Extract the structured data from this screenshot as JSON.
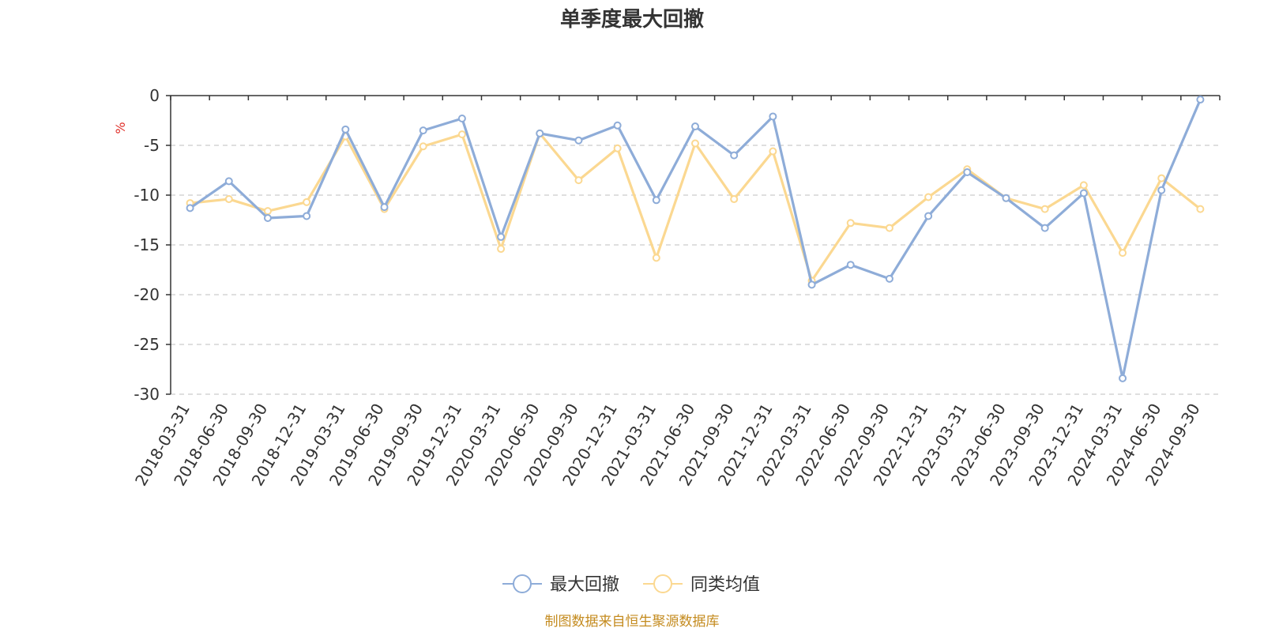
{
  "chart_data": {
    "type": "line",
    "title": "单季度最大回撤",
    "ylabel": "%",
    "ylim": [
      -30,
      0
    ],
    "yticks": [
      0,
      -5,
      -10,
      -15,
      -20,
      -25,
      -30
    ],
    "grid": true,
    "legend_position": "bottom-center",
    "categories": [
      "2018-03-31",
      "2018-06-30",
      "2018-09-30",
      "2018-12-31",
      "2019-03-31",
      "2019-06-30",
      "2019-09-30",
      "2019-12-31",
      "2020-03-31",
      "2020-06-30",
      "2020-09-30",
      "2020-12-31",
      "2021-03-31",
      "2021-06-30",
      "2021-09-30",
      "2021-12-31",
      "2022-03-31",
      "2022-06-30",
      "2022-09-30",
      "2022-12-31",
      "2023-03-31",
      "2023-06-30",
      "2023-09-30",
      "2023-12-31",
      "2024-03-31",
      "2024-06-30",
      "2024-09-30"
    ],
    "series": [
      {
        "name": "最大回撤",
        "color": "#8eacd8",
        "values": [
          -11.3,
          -8.6,
          -12.3,
          -12.1,
          -3.4,
          -11.2,
          -3.5,
          -2.3,
          -14.2,
          -3.8,
          -4.5,
          -3.0,
          -10.5,
          -3.1,
          -6.0,
          -2.1,
          -19.0,
          -17.0,
          -18.4,
          -12.1,
          -7.7,
          -10.3,
          -13.3,
          -9.8,
          -28.4,
          -9.5,
          -0.4
        ]
      },
      {
        "name": "同类均值",
        "color": "#fbd891",
        "values": [
          -10.8,
          -10.4,
          -11.6,
          -10.7,
          -4.1,
          -11.4,
          -5.1,
          -3.9,
          -15.4,
          -3.8,
          -8.5,
          -5.3,
          -16.3,
          -4.8,
          -10.4,
          -5.6,
          -18.6,
          -12.8,
          -13.3,
          -10.2,
          -7.4,
          -10.3,
          -11.4,
          -9.0,
          -15.8,
          -8.3,
          -11.4
        ]
      }
    ]
  },
  "source_text": "制图数据来自恒生聚源数据库",
  "colors": {
    "source": "#c48b1f",
    "unit": "#e0302a",
    "axis": "#333333",
    "grid": "#cccccc"
  }
}
